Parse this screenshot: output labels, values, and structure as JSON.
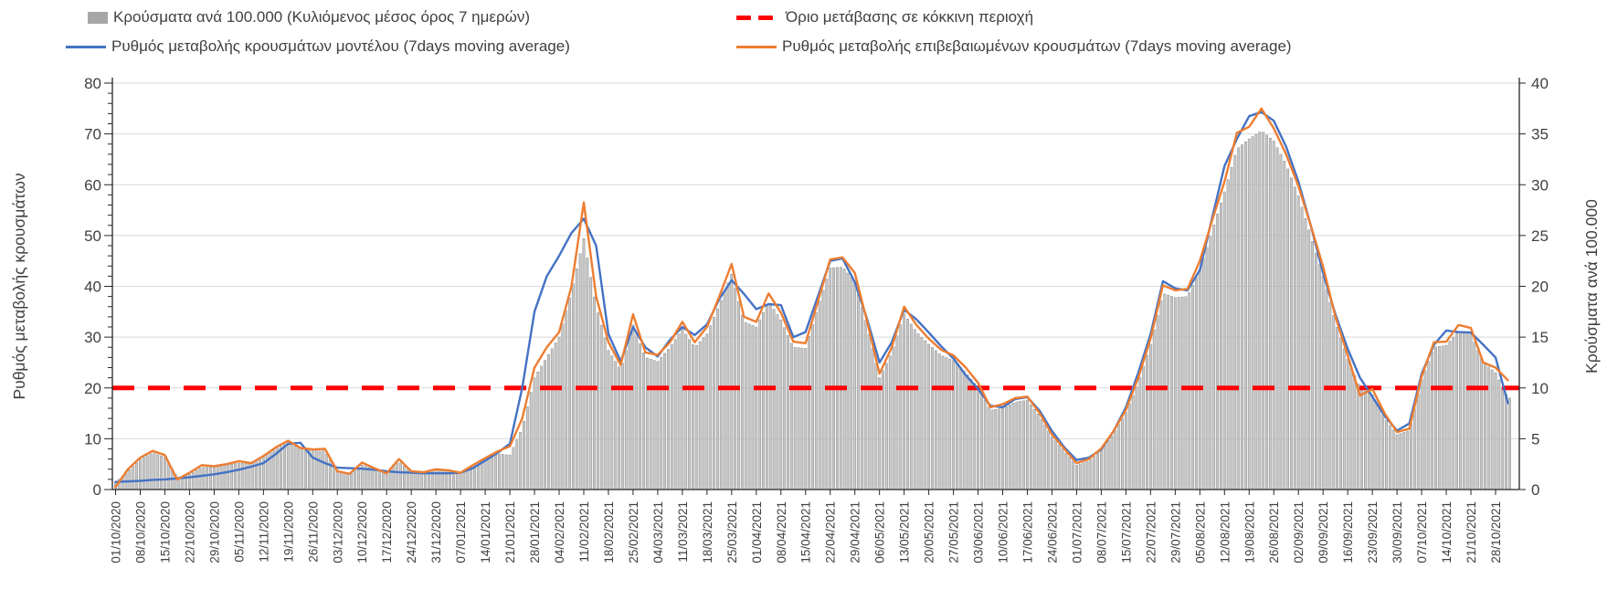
{
  "legend": {
    "bars_label": "Κρούσματα ανά 100.000 (Κυλιόμενος μέσος όρος 7 ημερών)",
    "threshold_label": "Όριο μετάβασης σε κόκκινη περιοχή",
    "model_label": "Ρυθμός μεταβολής κρουσμάτων μοντέλου (7days moving average)",
    "confirmed_label": "Ρυθμός μεταβολής επιβεβαιωμένων κρουσμάτων (7days moving average)"
  },
  "colors": {
    "bars_gray": "#a6a6a6",
    "bar_fill": "#c9c9c9",
    "bar_stroke": "#8f8f8f",
    "model_blue": "#4472c4",
    "confirmed_orange": "#ed7d31",
    "threshold_red": "#ff0000",
    "grid": "#d9d9d9",
    "axis": "#262626",
    "tick_text": "#404040"
  },
  "chart_data": {
    "type": "combo bar+line, dual y-axis",
    "title": "",
    "grid": true,
    "legend_position": "top",
    "sampling_days": 3.5,
    "x_axis": {
      "tick_interval_days": 7,
      "tick_labels": [
        "01/10/2020",
        "08/10/2020",
        "15/10/2020",
        "22/10/2020",
        "29/10/2020",
        "05/11/2020",
        "12/11/2020",
        "19/11/2020",
        "26/11/2020",
        "03/12/2020",
        "10/12/2020",
        "17/12/2020",
        "24/12/2020",
        "31/12/2020",
        "07/01/2021",
        "14/01/2021",
        "21/01/2021",
        "28/01/2021",
        "04/02/2021",
        "11/02/2021",
        "18/02/2021",
        "25/02/2021",
        "04/03/2021",
        "11/03/2021",
        "18/03/2021",
        "25/03/2021",
        "01/04/2021",
        "08/04/2021",
        "15/04/2021",
        "22/04/2021",
        "29/04/2021",
        "06/05/2021",
        "13/05/2021",
        "20/05/2021",
        "27/05/2021",
        "03/06/2021",
        "10/06/2021",
        "17/06/2021",
        "24/06/2021",
        "01/07/2021",
        "08/07/2021",
        "15/07/2021",
        "22/07/2021",
        "29/07/2021",
        "05/08/2021",
        "12/08/2021",
        "19/08/2021",
        "26/08/2021",
        "02/09/2021",
        "09/09/2021",
        "16/09/2021",
        "23/09/2021",
        "30/09/2021",
        "07/10/2021",
        "14/10/2021",
        "21/10/2021",
        "28/10/2021"
      ]
    },
    "left_axis": {
      "title": "Ρυθμός μεταβολής κρουσμάτων",
      "range": [
        0,
        80
      ],
      "ticks": [
        0,
        10,
        20,
        30,
        40,
        50,
        60,
        70,
        80
      ]
    },
    "right_axis": {
      "title": "Κρούσματα ανά 100.000",
      "range": [
        0,
        40
      ],
      "ticks": [
        0,
        5,
        10,
        15,
        20,
        25,
        30,
        35,
        40
      ]
    },
    "threshold": {
      "name": "Όριο μετάβασης σε κόκκινη περιοχή",
      "value_left_axis": 20,
      "value_right_axis": 10,
      "style": "dashed",
      "color": "#ff0000"
    },
    "series": [
      {
        "name": "Κρούσματα ανά 100.000 (Κυλιόμενος μέσος όρος 7 ημερών)",
        "type": "bar",
        "axis": "right",
        "color": "#a6a6a6",
        "values": [
          0.7,
          1.8,
          3.0,
          3.6,
          3.2,
          1.2,
          1.5,
          2.2,
          2.2,
          2.4,
          2.6,
          2.5,
          3.2,
          4.0,
          4.6,
          4.0,
          3.8,
          3.8,
          1.9,
          1.6,
          2.4,
          2.0,
          1.6,
          2.8,
          1.7,
          1.7,
          1.9,
          1.8,
          1.6,
          2.3,
          2.9,
          3.5,
          3.4,
          6.0,
          11.0,
          13.0,
          15.0,
          19.5,
          24.7,
          18.0,
          13.7,
          11.8,
          16.2,
          13.0,
          12.6,
          14.0,
          15.8,
          14.0,
          15.3,
          18.2,
          21.2,
          16.5,
          16.0,
          18.5,
          16.7,
          14.0,
          13.9,
          18.0,
          21.8,
          21.9,
          20.5,
          16.0,
          11.0,
          13.5,
          17.3,
          15.5,
          14.3,
          13.2,
          12.7,
          11.5,
          10.0,
          7.8,
          8.0,
          8.6,
          8.8,
          7.2,
          5.2,
          3.8,
          2.4,
          2.8,
          3.9,
          5.5,
          7.6,
          10.5,
          14.3,
          19.3,
          18.9,
          19.0,
          21.6,
          25.5,
          29.3,
          33.5,
          34.5,
          35.3,
          34.3,
          32.0,
          28.9,
          25.0,
          21.0,
          16.5,
          12.8,
          10.0,
          9.3,
          7.0,
          5.4,
          5.8,
          10.8,
          14.0,
          14.2,
          15.6,
          15.3,
          12.5,
          11.5,
          9.0
        ]
      },
      {
        "name": "Ρυθμός μεταβολής κρουσμάτων μοντέλου (7days moving average)",
        "type": "line",
        "axis": "left",
        "color": "#4472c4",
        "values": [
          1.5,
          1.6,
          1.7,
          1.9,
          2.0,
          2.2,
          2.4,
          2.7,
          3.0,
          3.4,
          3.9,
          4.5,
          5.2,
          7.0,
          9.0,
          9.2,
          6.3,
          5.2,
          4.3,
          4.2,
          4.1,
          3.9,
          3.6,
          3.4,
          3.3,
          3.2,
          3.2,
          3.2,
          3.3,
          4.2,
          5.7,
          7.2,
          9.0,
          20.0,
          35.0,
          42.0,
          46.0,
          50.5,
          53.3,
          48.0,
          30.6,
          25.2,
          32.0,
          28.0,
          26.2,
          29.5,
          32.0,
          30.4,
          32.5,
          37.5,
          41.2,
          38.5,
          35.5,
          36.5,
          36.3,
          30.0,
          31.0,
          38.0,
          45.0,
          45.5,
          40.8,
          33.5,
          25.0,
          29.0,
          35.4,
          33.5,
          30.9,
          28.2,
          25.8,
          22.5,
          19.8,
          16.5,
          16.2,
          17.8,
          18.2,
          15.5,
          11.5,
          8.3,
          5.8,
          6.3,
          7.9,
          11.5,
          16.2,
          23.0,
          30.6,
          41.0,
          39.6,
          39.2,
          43.2,
          53.5,
          63.7,
          69.0,
          73.5,
          74.3,
          72.6,
          67.5,
          60.6,
          52.0,
          42.6,
          34.5,
          27.7,
          22.0,
          18.3,
          14.5,
          11.6,
          13.0,
          22.8,
          28.5,
          31.3,
          31.0,
          30.9,
          28.5,
          26.0,
          17.0
        ]
      },
      {
        "name": "Ρυθμός μεταβολής επιβεβαιωμένων κρουσμάτων (7days moving average)",
        "type": "line",
        "axis": "left",
        "color": "#ed7d31",
        "values": [
          0.5,
          4.0,
          6.3,
          7.6,
          6.8,
          2.0,
          3.3,
          4.8,
          4.6,
          5.0,
          5.6,
          5.2,
          6.6,
          8.3,
          9.6,
          8.2,
          7.9,
          8.0,
          3.6,
          3.1,
          5.3,
          4.2,
          3.2,
          6.0,
          3.6,
          3.4,
          4.0,
          3.8,
          3.3,
          4.8,
          6.2,
          7.5,
          8.5,
          14.0,
          24.0,
          28.0,
          31.0,
          40.0,
          56.5,
          38.0,
          29.0,
          24.5,
          34.5,
          27.0,
          26.5,
          29.0,
          33.0,
          29.0,
          32.0,
          38.0,
          44.4,
          34.0,
          33.0,
          38.6,
          34.8,
          29.1,
          28.8,
          37.0,
          45.3,
          45.7,
          42.6,
          33.0,
          22.8,
          28.0,
          36.0,
          32.4,
          29.7,
          27.5,
          26.4,
          24.0,
          21.0,
          16.2,
          16.8,
          18.0,
          18.3,
          15.0,
          10.8,
          8.0,
          5.2,
          6.0,
          8.1,
          11.5,
          15.7,
          22.0,
          29.7,
          40.2,
          39.2,
          39.5,
          45.0,
          53.0,
          60.6,
          70.2,
          71.4,
          75.0,
          71.1,
          66.0,
          59.7,
          52.0,
          43.9,
          34.0,
          26.4,
          18.5,
          19.8,
          15.0,
          11.3,
          12.0,
          22.3,
          29.0,
          29.1,
          32.4,
          31.8,
          25.0,
          24.0,
          21.5
        ]
      }
    ]
  }
}
